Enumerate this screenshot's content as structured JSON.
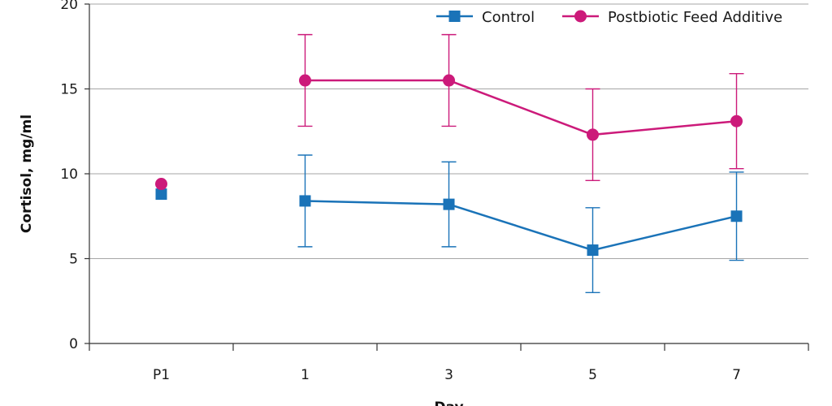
{
  "chart_data": {
    "type": "line",
    "categories": [
      "P1",
      "1",
      "3",
      "5",
      "7"
    ],
    "ylabel": "Cortisol, mg/ml",
    "xlabel": "Day",
    "ylim": [
      0,
      20
    ],
    "yticks": [
      0,
      5,
      10,
      15,
      20
    ],
    "grid": true,
    "legend_position": "top-right",
    "series": [
      {
        "name": "Control",
        "color": "#1a73b8",
        "marker": "square",
        "values": [
          8.8,
          8.4,
          8.2,
          5.5,
          7.5
        ],
        "error": [
          null,
          2.7,
          2.5,
          2.5,
          2.6
        ],
        "connected_from_index": 1
      },
      {
        "name": "Postbiotic Feed Additive",
        "color": "#cc1a7a",
        "marker": "circle",
        "values": [
          9.4,
          15.5,
          15.5,
          12.3,
          13.1
        ],
        "error": [
          null,
          2.7,
          2.7,
          2.7,
          2.8
        ],
        "connected_from_index": 1
      }
    ]
  }
}
